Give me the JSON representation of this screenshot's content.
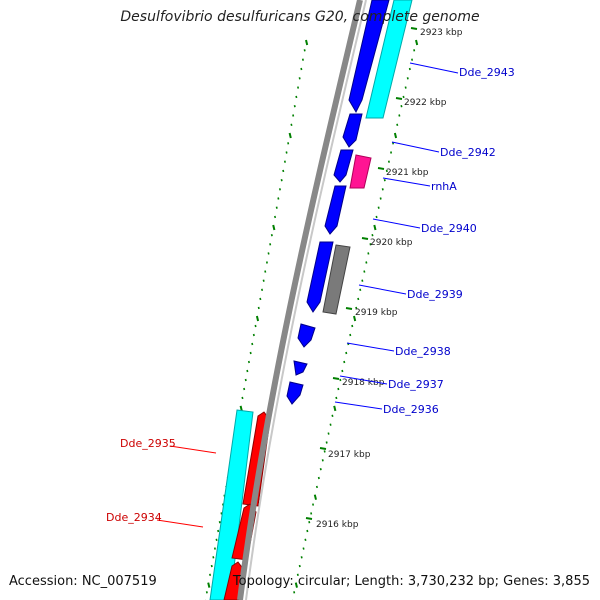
{
  "title": "Desulfovibrio desulfuricans G20, complete genome",
  "footer": {
    "accession": "Accession: NC_007519",
    "summary": "Topology: circular; Length: 3,730,232 bp; Genes: 3,855"
  },
  "colors": {
    "forward_gene": "#0000ff",
    "reverse_gene": "#ff0000",
    "cds": "#00ffff",
    "rna": "#ff1493",
    "pseudo": "#7a7a7a",
    "backbone": "#808080",
    "ticks": "#008000",
    "label_forward": "#0000cc",
    "label_reverse": "#cc0000"
  },
  "chart_data": {
    "type": "circular-genome-map",
    "scale_unit": "kbp",
    "scale_labels": [
      "2923 kbp",
      "2922 kbp",
      "2921 kbp",
      "2920 kbp",
      "2919 kbp",
      "2918 kbp",
      "2917 kbp",
      "2916 kbp"
    ],
    "gene_labels": {
      "forward": [
        "Dde_2943",
        "Dde_2942",
        "rnhA",
        "Dde_2940",
        "Dde_2939",
        "Dde_2938",
        "Dde_2937",
        "Dde_2936"
      ],
      "reverse": [
        "Dde_2935",
        "Dde_2934"
      ]
    }
  }
}
